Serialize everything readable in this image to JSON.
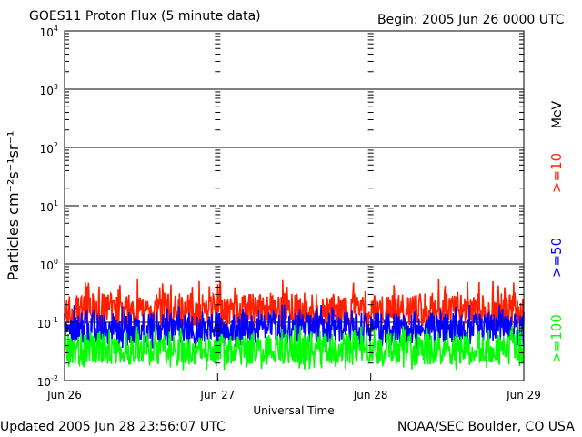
{
  "chart_data": {
    "type": "line",
    "title": "GOES11 Proton Flux (5 minute data)",
    "begin_label": "Begin: 2005 Jun 26 0000 UTC",
    "xlabel": "Universal Time",
    "ylabel": "Particles cm⁻²s⁻¹sr⁻¹",
    "y_scale": "log",
    "ylim": [
      0.01,
      10000
    ],
    "y_ticks": [
      {
        "base": "10",
        "exp": "-2",
        "value": 0.01
      },
      {
        "base": "10",
        "exp": "-1",
        "value": 0.1
      },
      {
        "base": "10",
        "exp": "0",
        "value": 1
      },
      {
        "base": "10",
        "exp": "1",
        "value": 10
      },
      {
        "base": "10",
        "exp": "2",
        "value": 100
      },
      {
        "base": "10",
        "exp": "3",
        "value": 1000
      },
      {
        "base": "10",
        "exp": "4",
        "value": 10000
      }
    ],
    "x_ticks": [
      "Jun 26",
      "Jun 27",
      "Jun 28",
      "Jun 29"
    ],
    "xlim_days": [
      0,
      3
    ],
    "grid_lines": [
      {
        "value": 1,
        "style": "solid"
      },
      {
        "value": 10,
        "style": "dashed"
      },
      {
        "value": 100,
        "style": "solid"
      },
      {
        "value": 1000,
        "style": "solid"
      },
      {
        "value": 0.1,
        "style": "solid"
      }
    ],
    "legend_unit": "MeV",
    "series": [
      {
        "name": ">=10",
        "color": "#ff2000",
        "typical_flux": 0.16,
        "range": [
          0.08,
          0.55
        ]
      },
      {
        "name": ">=50",
        "color": "#0000ff",
        "typical_flux": 0.08,
        "range": [
          0.035,
          0.2
        ]
      },
      {
        "name": ">=100",
        "color": "#00ff00",
        "typical_flux": 0.035,
        "range": [
          0.015,
          0.09
        ]
      }
    ]
  },
  "footer": {
    "updated": "Updated 2005 Jun 28 23:56:07 UTC",
    "source": "NOAA/SEC Boulder, CO USA"
  }
}
